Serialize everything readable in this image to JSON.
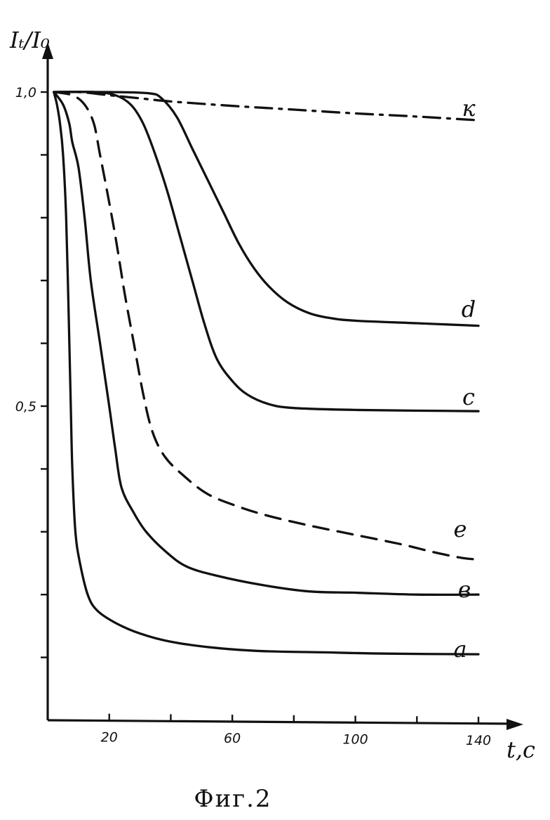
{
  "chart_data": {
    "type": "line",
    "ylabel": "Iₜ/I₀",
    "xlabel": "t,c",
    "caption": "Фиг.2",
    "xlim": [
      0,
      145
    ],
    "ylim": [
      0,
      1.0
    ],
    "x_ticks": [
      {
        "value": 20,
        "label": "20"
      },
      {
        "value": 40,
        "label": ""
      },
      {
        "value": 60,
        "label": "60"
      },
      {
        "value": 80,
        "label": ""
      },
      {
        "value": 100,
        "label": "100"
      },
      {
        "value": 120,
        "label": ""
      },
      {
        "value": 140,
        "label": "140"
      }
    ],
    "y_ticks": [
      {
        "value": 0.1,
        "label": ""
      },
      {
        "value": 0.2,
        "label": ""
      },
      {
        "value": 0.3,
        "label": ""
      },
      {
        "value": 0.4,
        "label": ""
      },
      {
        "value": 0.5,
        "label": "0,5"
      },
      {
        "value": 0.6,
        "label": ""
      },
      {
        "value": 0.7,
        "label": ""
      },
      {
        "value": 0.8,
        "label": ""
      },
      {
        "value": 0.9,
        "label": ""
      },
      {
        "value": 1.0,
        "label": "1,0"
      }
    ],
    "series": [
      {
        "name": "к",
        "style": "dashdot",
        "points": [
          [
            2,
            1.0
          ],
          [
            10,
            1.0
          ],
          [
            20,
            0.995
          ],
          [
            30,
            0.99
          ],
          [
            40,
            0.985
          ],
          [
            60,
            0.978
          ],
          [
            80,
            0.972
          ],
          [
            100,
            0.966
          ],
          [
            120,
            0.961
          ],
          [
            140,
            0.955
          ]
        ]
      },
      {
        "name": "d",
        "style": "solid",
        "points": [
          [
            2,
            1.0
          ],
          [
            20,
            1.0
          ],
          [
            33,
            0.998
          ],
          [
            37,
            0.99
          ],
          [
            42,
            0.96
          ],
          [
            47,
            0.91
          ],
          [
            52,
            0.86
          ],
          [
            57,
            0.81
          ],
          [
            62,
            0.76
          ],
          [
            67,
            0.72
          ],
          [
            72,
            0.69
          ],
          [
            78,
            0.665
          ],
          [
            85,
            0.648
          ],
          [
            92,
            0.64
          ],
          [
            100,
            0.636
          ],
          [
            120,
            0.632
          ],
          [
            140,
            0.628
          ]
        ]
      },
      {
        "name": "c",
        "style": "solid",
        "points": [
          [
            2,
            1.0
          ],
          [
            15,
            1.0
          ],
          [
            22,
            0.995
          ],
          [
            27,
            0.98
          ],
          [
            31,
            0.95
          ],
          [
            35,
            0.9
          ],
          [
            39,
            0.84
          ],
          [
            43,
            0.77
          ],
          [
            47,
            0.7
          ],
          [
            51,
            0.63
          ],
          [
            55,
            0.575
          ],
          [
            60,
            0.54
          ],
          [
            65,
            0.518
          ],
          [
            72,
            0.503
          ],
          [
            80,
            0.497
          ],
          [
            100,
            0.494
          ],
          [
            140,
            0.492
          ]
        ]
      },
      {
        "name": "e",
        "style": "dashed",
        "points": [
          [
            2,
            1.0
          ],
          [
            8,
            0.995
          ],
          [
            12,
            0.98
          ],
          [
            15,
            0.95
          ],
          [
            17,
            0.9
          ],
          [
            19,
            0.85
          ],
          [
            22,
            0.77
          ],
          [
            25,
            0.68
          ],
          [
            28,
            0.6
          ],
          [
            31,
            0.52
          ],
          [
            34,
            0.46
          ],
          [
            38,
            0.42
          ],
          [
            44,
            0.39
          ],
          [
            52,
            0.36
          ],
          [
            62,
            0.34
          ],
          [
            72,
            0.325
          ],
          [
            85,
            0.31
          ],
          [
            100,
            0.295
          ],
          [
            115,
            0.28
          ],
          [
            125,
            0.268
          ],
          [
            135,
            0.258
          ],
          [
            140,
            0.256
          ]
        ]
      },
      {
        "name": "в",
        "style": "solid",
        "points": [
          [
            2,
            1.0
          ],
          [
            5,
            0.98
          ],
          [
            7,
            0.95
          ],
          [
            8,
            0.92
          ],
          [
            10,
            0.88
          ],
          [
            12,
            0.8
          ],
          [
            14,
            0.7
          ],
          [
            17,
            0.6
          ],
          [
            20,
            0.5
          ],
          [
            22,
            0.43
          ],
          [
            24,
            0.37
          ],
          [
            28,
            0.33
          ],
          [
            32,
            0.3
          ],
          [
            38,
            0.27
          ],
          [
            45,
            0.245
          ],
          [
            55,
            0.23
          ],
          [
            70,
            0.215
          ],
          [
            85,
            0.205
          ],
          [
            100,
            0.203
          ],
          [
            120,
            0.2
          ],
          [
            140,
            0.2
          ]
        ]
      },
      {
        "name": "a",
        "style": "solid",
        "points": [
          [
            2,
            1.0
          ],
          [
            3,
            0.98
          ],
          [
            4,
            0.95
          ],
          [
            5,
            0.9
          ],
          [
            6,
            0.8
          ],
          [
            6.8,
            0.65
          ],
          [
            7.5,
            0.5
          ],
          [
            8,
            0.4
          ],
          [
            9,
            0.3
          ],
          [
            10.5,
            0.25
          ],
          [
            13,
            0.2
          ],
          [
            16,
            0.175
          ],
          [
            22,
            0.155
          ],
          [
            30,
            0.138
          ],
          [
            40,
            0.125
          ],
          [
            55,
            0.115
          ],
          [
            70,
            0.11
          ],
          [
            90,
            0.108
          ],
          [
            110,
            0.106
          ],
          [
            140,
            0.105
          ]
        ]
      }
    ]
  }
}
